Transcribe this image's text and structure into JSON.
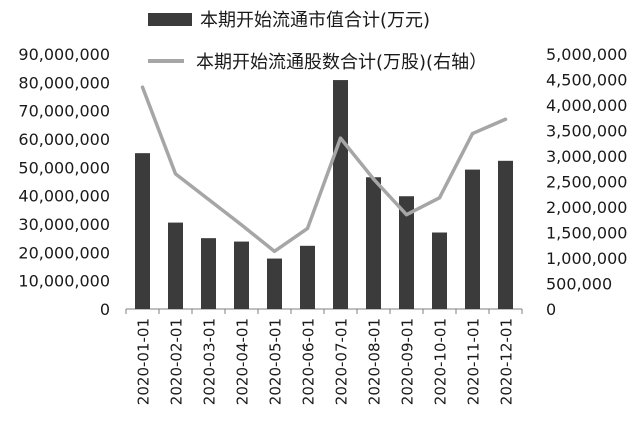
{
  "chart_data": {
    "type": "bar",
    "categories": [
      "2020-01-01",
      "2020-02-01",
      "2020-03-01",
      "2020-04-01",
      "2020-05-01",
      "2020-06-01",
      "2020-07-01",
      "2020-08-01",
      "2020-09-01",
      "2020-10-01",
      "2020-11-01",
      "2020-12-01"
    ],
    "series": [
      {
        "name": "本期开始流通市值合计(万元)",
        "type": "bar",
        "axis": "left",
        "color": "#3b3b3b",
        "values": [
          55000000,
          30500000,
          25000000,
          23800000,
          17800000,
          22300000,
          80800000,
          46500000,
          39800000,
          27000000,
          49200000,
          52300000
        ]
      },
      {
        "name": "本期开始流通股数合计(万股)(右轴）",
        "type": "line",
        "axis": "right",
        "color": "#a6a6a6",
        "values": [
          4350000,
          2650000,
          2150000,
          1650000,
          1130000,
          1580000,
          3350000,
          2550000,
          1850000,
          2180000,
          3440000,
          3720000
        ]
      }
    ],
    "y_left": {
      "lim": [
        0,
        90000000
      ],
      "ticks": [
        "0",
        "10,000,000",
        "20,000,000",
        "30,000,000",
        "40,000,000",
        "50,000,000",
        "60,000,000",
        "70,000,000",
        "80,000,000",
        "90,000,000"
      ]
    },
    "y_right": {
      "lim": [
        0,
        5000000
      ],
      "ticks": [
        "0",
        "500,000",
        "1,000,000",
        "1,500,000",
        "2,000,000",
        "2,500,000",
        "3,000,000",
        "3,500,000",
        "4,000,000",
        "4,500,000",
        "5,000,000"
      ]
    },
    "grid": false,
    "legend_position": "top"
  }
}
